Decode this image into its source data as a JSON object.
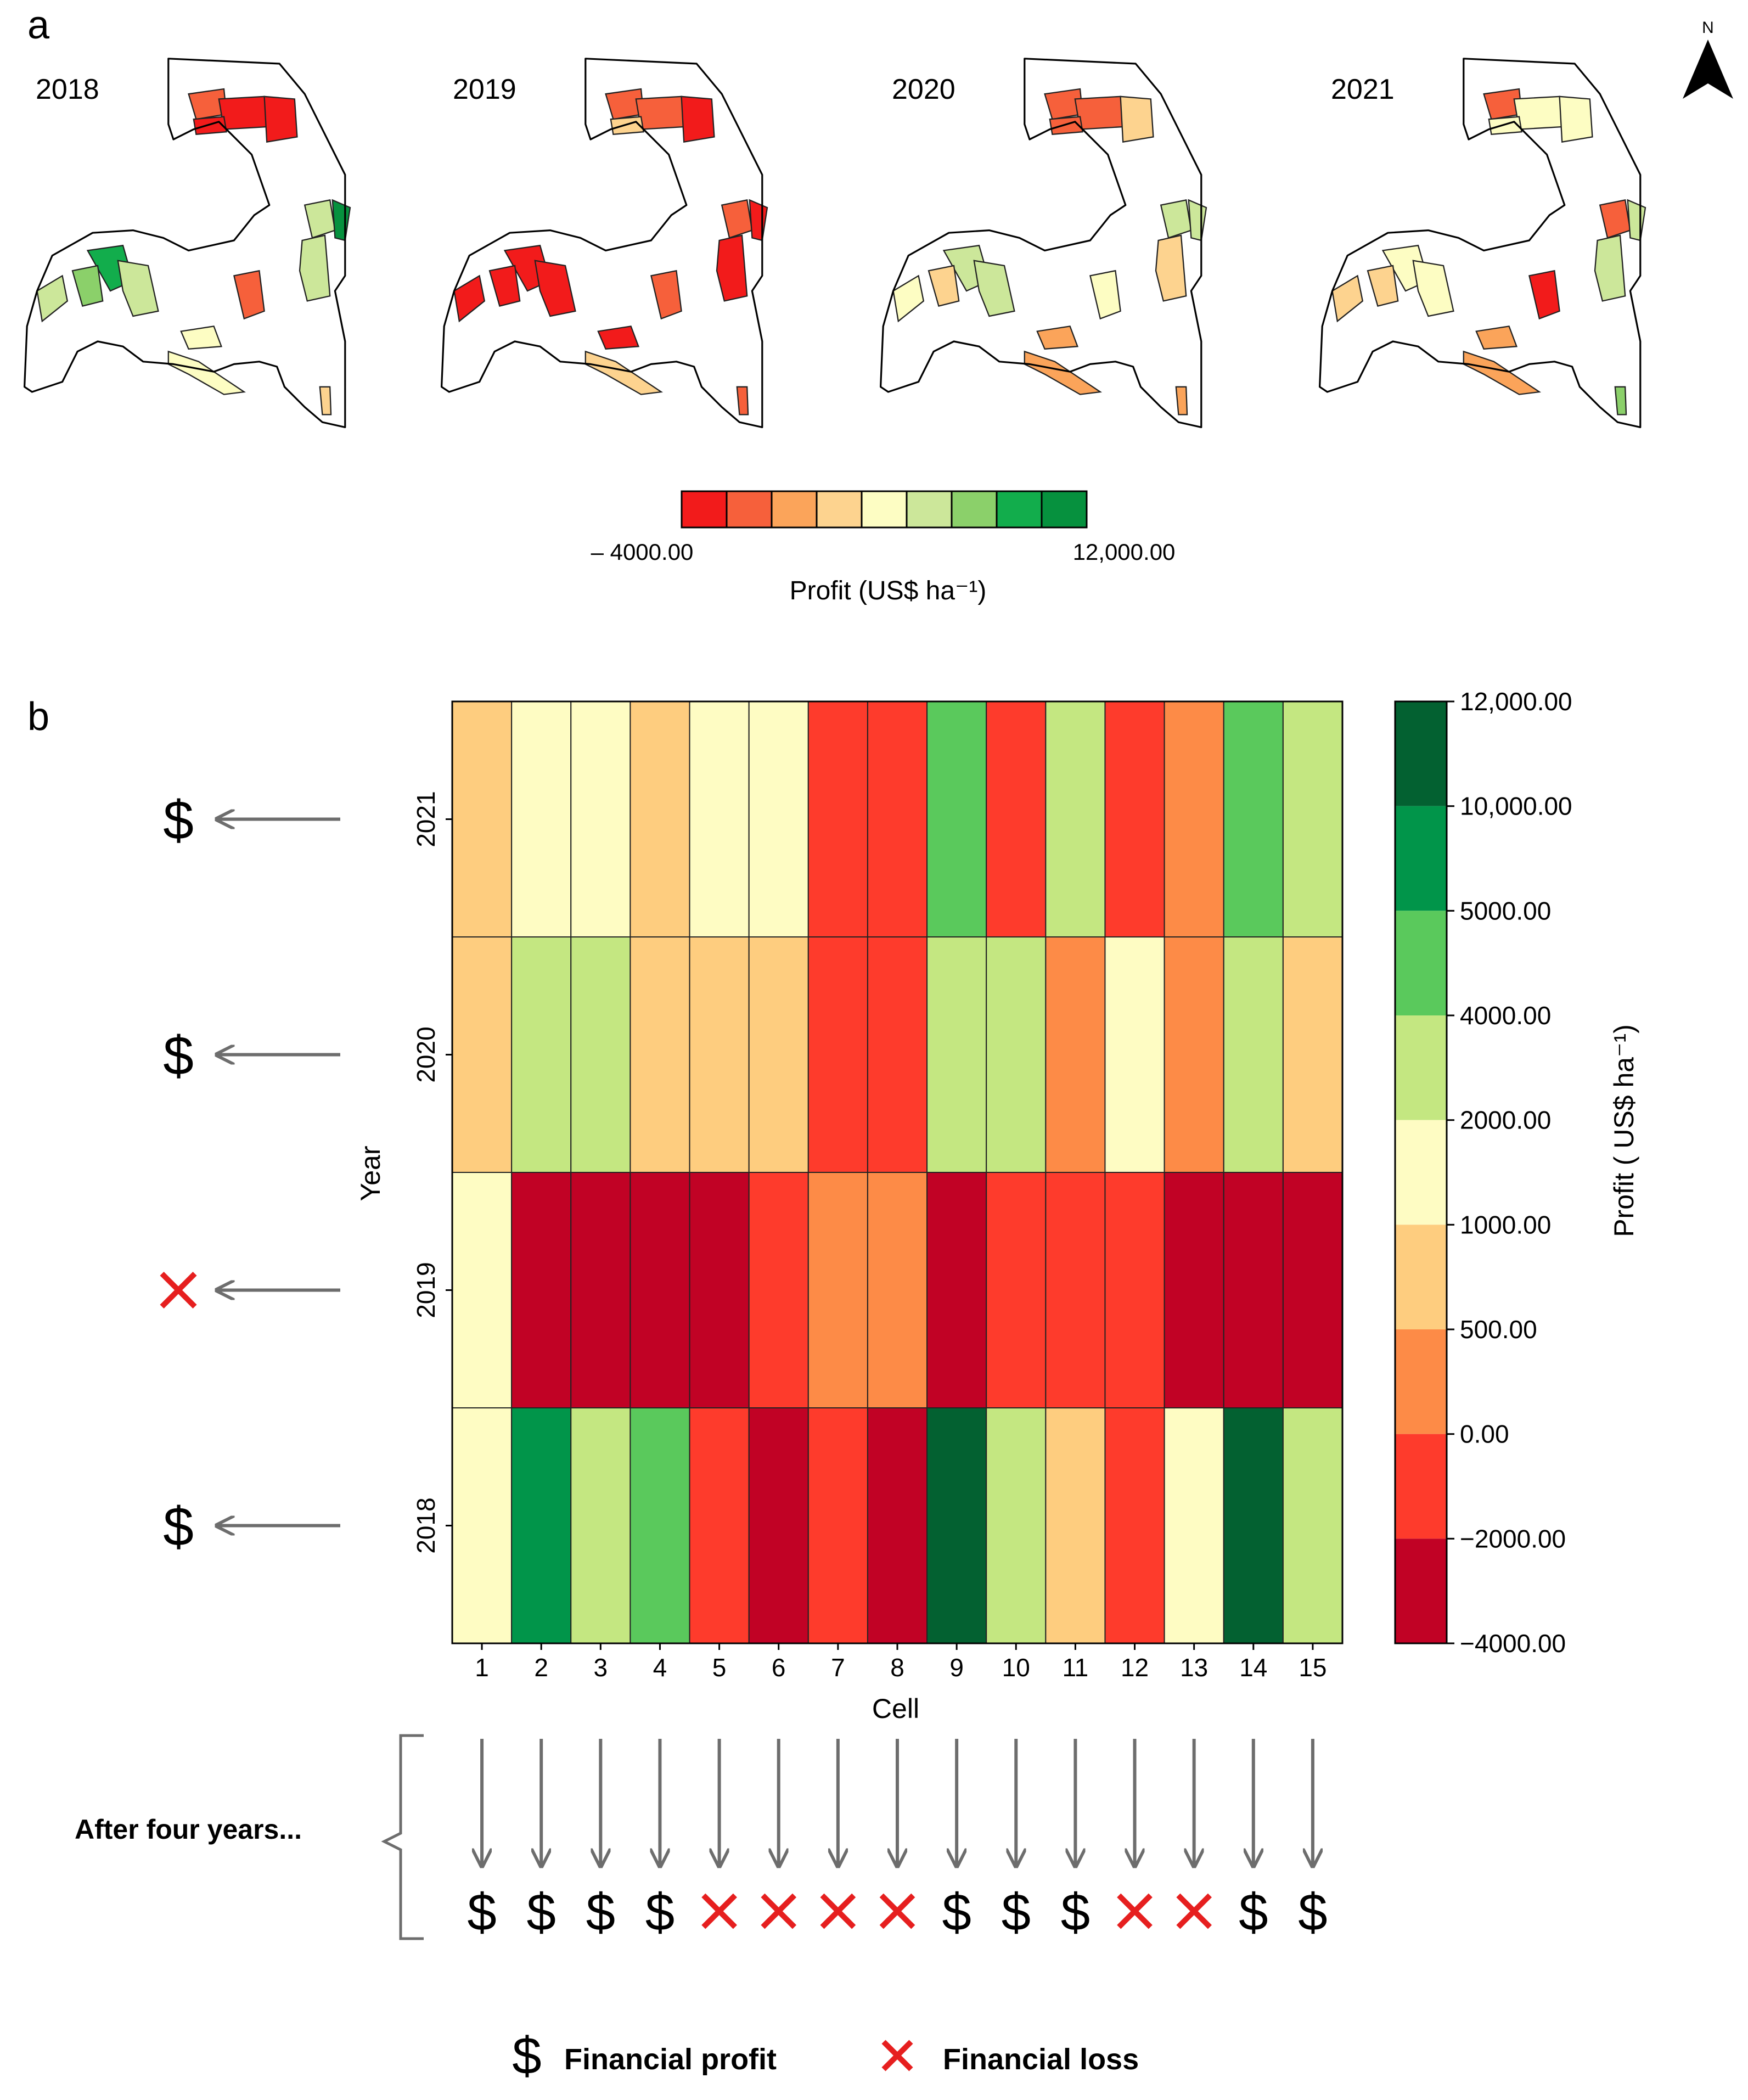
{
  "panel_a": {
    "label": "a",
    "years": [
      "2018",
      "2019",
      "2020",
      "2021"
    ],
    "north_label": "N",
    "legend": {
      "colors": [
        "#f21b1b",
        "#f6603b",
        "#fba45a",
        "#fdd38f",
        "#fdfdc3",
        "#cce79a",
        "#8bd06a",
        "#12ad4c",
        "#06913e"
      ],
      "min_label": "– 4000.00",
      "max_label": "12,000.00",
      "title": "Profit (US$ ha⁻¹)"
    }
  },
  "panel_b": {
    "label": "b",
    "xlabel": "Cell",
    "ylabel": "Year",
    "colorbar_label": "Profit ( US$ ha⁻¹)",
    "years_top_to_bottom": [
      "2021",
      "2020",
      "2019",
      "2018"
    ],
    "year_outcomes": [
      "profit",
      "profit",
      "loss",
      "profit"
    ],
    "after_label": "After four years...",
    "cell_outcomes": [
      "profit",
      "profit",
      "profit",
      "profit",
      "loss",
      "loss",
      "loss",
      "loss",
      "profit",
      "profit",
      "profit",
      "loss",
      "loss",
      "profit",
      "profit"
    ]
  },
  "symbols": {
    "profit": "$",
    "loss": "✕"
  },
  "legend_bottom": {
    "profit_label": "Financial profit",
    "loss_label": "Financial loss"
  },
  "colors": {
    "profit_green": "#0aa84f",
    "loss_red": "#e61f1f",
    "arrow_gray": "#6d6d6d"
  },
  "chart_data": {
    "type": "heatmap",
    "x": [
      1,
      2,
      3,
      4,
      5,
      6,
      7,
      8,
      9,
      10,
      11,
      12,
      13,
      14,
      15
    ],
    "y": [
      "2021",
      "2020",
      "2019",
      "2018"
    ],
    "xlabel": "Cell",
    "ylabel": "Year",
    "colorbar": {
      "label": "Profit ( US$ ha⁻¹)",
      "ticks": [
        "12,000.00",
        "10,000.00",
        "5000.00",
        "4000.00",
        "2000.00",
        "1000.00",
        "500.00",
        "0.00",
        "−2000.00",
        "−4000.00"
      ],
      "bin_colors_top_to_bottom": [
        "#036131",
        "#01954a",
        "#5ac95c",
        "#c4e781",
        "#fefcc3",
        "#fecd7f",
        "#fd8b47",
        "#fe3b2c",
        "#c10225"
      ]
    },
    "class_index_top_to_bottom_bins": {
      "note_bins": "0=10000..12000, 1=5000..10000, 2=4000..5000, 3=2000..4000, 4=1000..2000, 5=500..1000, 6=0..500, 7=-2000..0, 8=-4000..-2000"
    },
    "values": [
      [
        750,
        1500,
        1500,
        750,
        1500,
        1500,
        -1000,
        -1000,
        4500,
        -1000,
        3000,
        -1000,
        250,
        4500,
        3000
      ],
      [
        750,
        3000,
        3000,
        750,
        750,
        750,
        -1000,
        -1000,
        3000,
        3000,
        250,
        1500,
        250,
        3000,
        750
      ],
      [
        1500,
        -3000,
        -3000,
        -3000,
        -3000,
        -1000,
        250,
        250,
        -3000,
        -1000,
        -1000,
        -1000,
        -3000,
        -3000,
        -3000
      ],
      [
        1500,
        7500,
        3000,
        4500,
        -1000,
        -3000,
        -1000,
        -3000,
        11000,
        3000,
        750,
        -1000,
        1500,
        11000,
        3000
      ]
    ]
  }
}
